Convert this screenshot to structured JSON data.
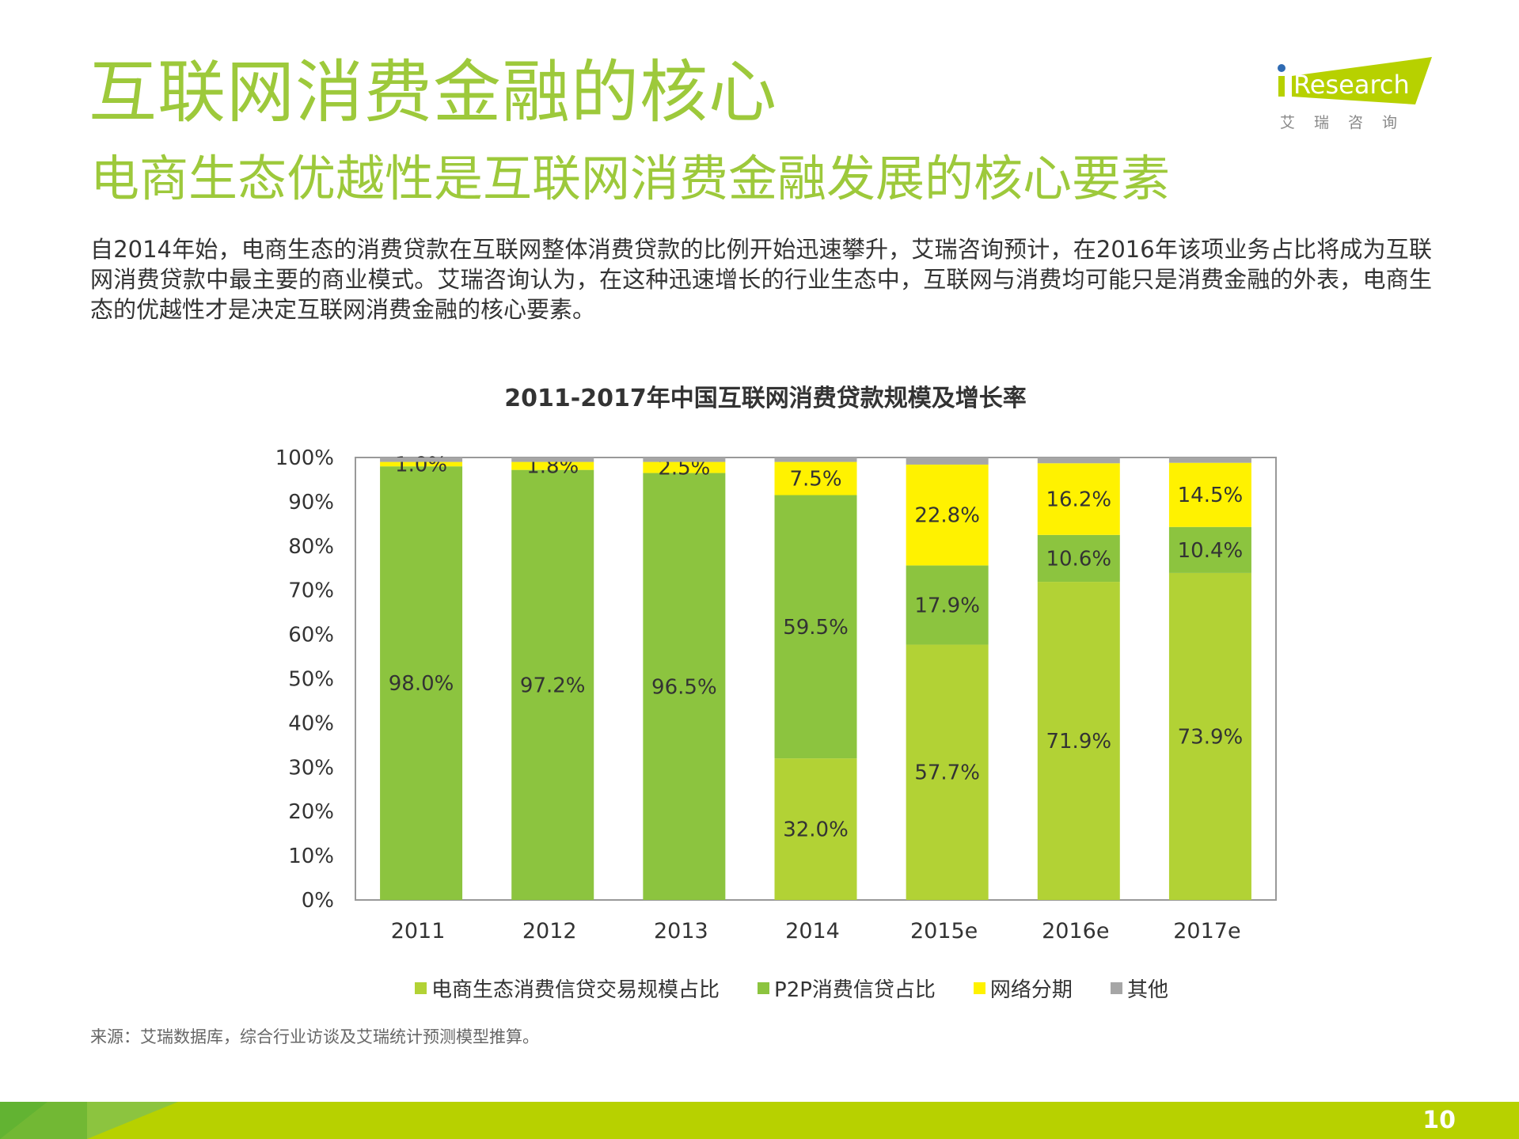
{
  "header": {
    "title": "互联网消费金融的核心",
    "subtitle": "电商生态优越性是互联网消费金融发展的核心要素",
    "body": "自2014年始，电商生态的消费贷款在互联网整体消费贷款的比例开始迅速攀升，艾瑞咨询预计，在2016年该项业务占比将成为互联网消费贷款中最主要的商业模式。艾瑞咨询认为，在这种迅速增长的行业生态中，互联网与消费均可能只是消费金融的外表，电商生态的优越性才是决定互联网消费金融的核心要素。"
  },
  "logo": {
    "text": "iResearch",
    "cn": "艾 瑞 咨 询"
  },
  "chart_data": {
    "type": "bar",
    "stacked": true,
    "title": "2011-2017年中国互联网消费贷款规模及增长率",
    "categories": [
      "2011",
      "2012",
      "2013",
      "2014",
      "2015e",
      "2016e",
      "2017e"
    ],
    "ylim": [
      0,
      100
    ],
    "yticks": [
      "0%",
      "10%",
      "20%",
      "30%",
      "40%",
      "50%",
      "60%",
      "70%",
      "80%",
      "90%",
      "100%"
    ],
    "grid": false,
    "legend_position": "bottom",
    "series": [
      {
        "name": "电商生态消费信贷交易规模占比",
        "color": "#b2d235",
        "values": [
          0,
          0,
          0,
          32.0,
          57.7,
          71.9,
          73.9
        ],
        "labels": [
          "",
          "",
          "",
          "32.0%",
          "57.7%",
          "71.9%",
          "73.9%"
        ]
      },
      {
        "name": "P2P消费信贷占比",
        "color": "#8cc43f",
        "values": [
          98.0,
          97.2,
          96.5,
          59.5,
          17.9,
          10.6,
          10.4
        ],
        "labels": [
          "98.0%",
          "97.2%",
          "96.5%",
          "59.5%",
          "17.9%",
          "10.6%",
          "10.4%"
        ]
      },
      {
        "name": "网络分期",
        "color": "#fff200",
        "values": [
          1.0,
          1.8,
          2.5,
          7.5,
          22.8,
          16.2,
          14.5
        ],
        "labels": [
          "1.0%",
          "1.8%",
          "2.5%",
          "7.5%",
          "22.8%",
          "16.2%",
          "14.5%"
        ]
      },
      {
        "name": "其他",
        "color": "#a6a6a6",
        "values": [
          1.0,
          1.0,
          1.0,
          1.0,
          1.6,
          1.3,
          1.2
        ],
        "labels": [
          "",
          "",
          "",
          "",
          "",
          "",
          ""
        ]
      }
    ]
  },
  "source": "来源：艾瑞数据库，综合行业访谈及艾瑞统计预测模型推算。",
  "footer": {
    "page": "10",
    "color": "#b7d100"
  }
}
